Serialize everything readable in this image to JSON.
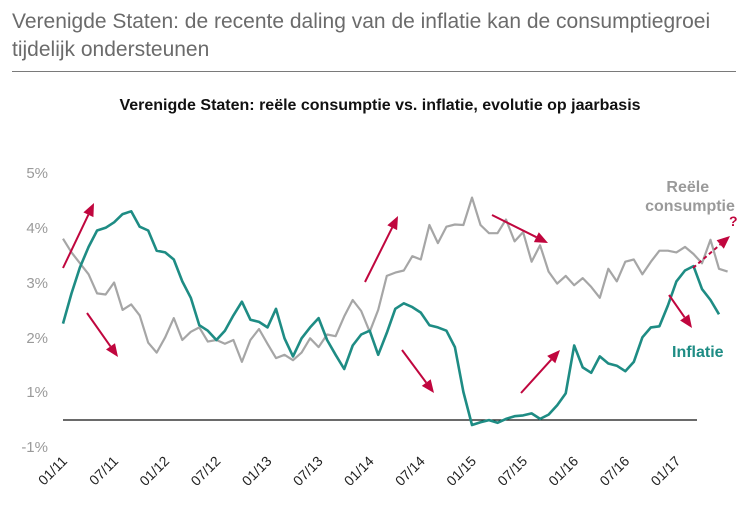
{
  "headline": "Verenigde Staten: de recente daling van de inflatie kan de consumptiegroei tijdelijk ondersteunen",
  "chart_data": {
    "type": "line",
    "title": "Verenigde Staten: reële consumptie vs. inflatie, evolutie op jaarbasis",
    "xlabel": "",
    "ylabel": "",
    "x_start": "01/11",
    "x_end": "03/17",
    "x_ticks": [
      "01/11",
      "07/11",
      "01/12",
      "07/12",
      "01/13",
      "07/13",
      "01/14",
      "07/14",
      "01/15",
      "07/15",
      "01/16",
      "07/16",
      "01/17"
    ],
    "y_ticks": [
      "-1%",
      "1%",
      "2%",
      "3%",
      "4%",
      "5%"
    ],
    "ylim": [
      -1,
      5
    ],
    "note": "",
    "grid": false,
    "series": [
      {
        "name": "Reële consumptie",
        "color": "#a6a6a6",
        "values": [
          3.8,
          3.55,
          3.35,
          3.15,
          2.8,
          2.78,
          3.0,
          2.5,
          2.6,
          2.4,
          1.9,
          1.72,
          2.0,
          2.35,
          1.95,
          2.1,
          2.18,
          1.92,
          1.95,
          1.88,
          1.95,
          1.55,
          1.95,
          2.15,
          1.88,
          1.62,
          1.68,
          1.58,
          1.72,
          1.98,
          1.82,
          2.05,
          2.02,
          2.38,
          2.68,
          2.48,
          2.1,
          2.5,
          3.12,
          3.18,
          3.22,
          3.48,
          3.42,
          4.05,
          3.72,
          4.02,
          4.06,
          4.05,
          4.55,
          4.05,
          3.9,
          3.9,
          4.15,
          3.75,
          3.92,
          3.38,
          3.68,
          3.2,
          2.98,
          3.12,
          2.95,
          3.08,
          2.92,
          2.72,
          3.25,
          3.02,
          3.38,
          3.42,
          3.15,
          3.38,
          3.58,
          3.58,
          3.55,
          3.65,
          3.52,
          3.35,
          3.78,
          3.25,
          3.2
        ]
      },
      {
        "name": "Inflatie",
        "color": "#1e8c84",
        "values": [
          2.25,
          2.8,
          3.28,
          3.65,
          3.95,
          4.0,
          4.1,
          4.25,
          4.3,
          4.02,
          3.95,
          3.58,
          3.55,
          3.42,
          3.02,
          2.72,
          2.22,
          2.12,
          1.95,
          2.12,
          2.4,
          2.65,
          2.32,
          2.28,
          2.18,
          2.52,
          1.98,
          1.65,
          1.98,
          2.18,
          2.35,
          1.95,
          1.68,
          1.42,
          1.85,
          2.05,
          2.12,
          1.68,
          2.08,
          2.52,
          2.62,
          2.55,
          2.45,
          2.22,
          2.18,
          2.12,
          1.82,
          1.0,
          -0.2,
          -0.1,
          -0.02,
          -0.12,
          0.02,
          0.12,
          0.15,
          0.22,
          0.02,
          0.18,
          0.52,
          0.95,
          1.85,
          1.45,
          1.35,
          1.65,
          1.52,
          1.48,
          1.38,
          1.55,
          2.0,
          2.18,
          2.2,
          2.58,
          3.02,
          3.22,
          3.3,
          2.88,
          2.68,
          2.42
        ]
      }
    ]
  }
}
